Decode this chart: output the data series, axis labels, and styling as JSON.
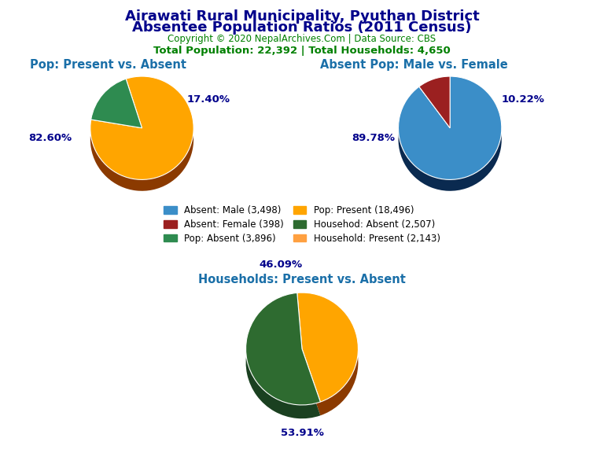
{
  "title_line1": "Airawati Rural Municipality, Pyuthan District",
  "title_line2": "Absentee Population Ratios (2011 Census)",
  "copyright": "Copyright © 2020 NepalArchives.Com | Data Source: CBS",
  "stats": "Total Population: 22,392 | Total Households: 4,650",
  "pie1_title": "Pop: Present vs. Absent",
  "pie1_values": [
    18496,
    3896
  ],
  "pie1_labels": [
    "82.60%",
    "17.40%"
  ],
  "pie1_colors": [
    "#FFA500",
    "#2E8B50"
  ],
  "pie1_shadow_colors": [
    "#8B3A00",
    "#1A5C30"
  ],
  "pie1_startangle": 108,
  "pie2_title": "Absent Pop: Male vs. Female",
  "pie2_values": [
    3498,
    398
  ],
  "pie2_labels": [
    "89.78%",
    "10.22%"
  ],
  "pie2_colors": [
    "#3B8EC8",
    "#9B2020"
  ],
  "pie2_shadow_colors": [
    "#0A2A50",
    "#5A0A0A"
  ],
  "pie2_startangle": 90,
  "pie3_title": "Households: Present vs. Absent",
  "pie3_values": [
    2143,
    2507
  ],
  "pie3_labels": [
    "46.09%",
    "53.91%"
  ],
  "pie3_colors": [
    "#FFA500",
    "#2E6B30"
  ],
  "pie3_shadow_colors": [
    "#8B3A00",
    "#1A4020"
  ],
  "pie3_startangle": 95,
  "legend_items": [
    {
      "label": "Absent: Male (3,498)",
      "color": "#3B8EC8"
    },
    {
      "label": "Absent: Female (398)",
      "color": "#9B2020"
    },
    {
      "label": "Pop: Absent (3,896)",
      "color": "#2E8B50"
    },
    {
      "label": "Pop: Present (18,496)",
      "color": "#FFA500"
    },
    {
      "label": "Househod: Absent (2,507)",
      "color": "#2E6B30"
    },
    {
      "label": "Household: Present (2,143)",
      "color": "#FFA040"
    }
  ],
  "title_color": "#00008B",
  "copyright_color": "#008000",
  "stats_color": "#008000",
  "subtitle_color": "#1A6FA8",
  "label_color": "#00008B",
  "bg_color": "#FFFFFF"
}
